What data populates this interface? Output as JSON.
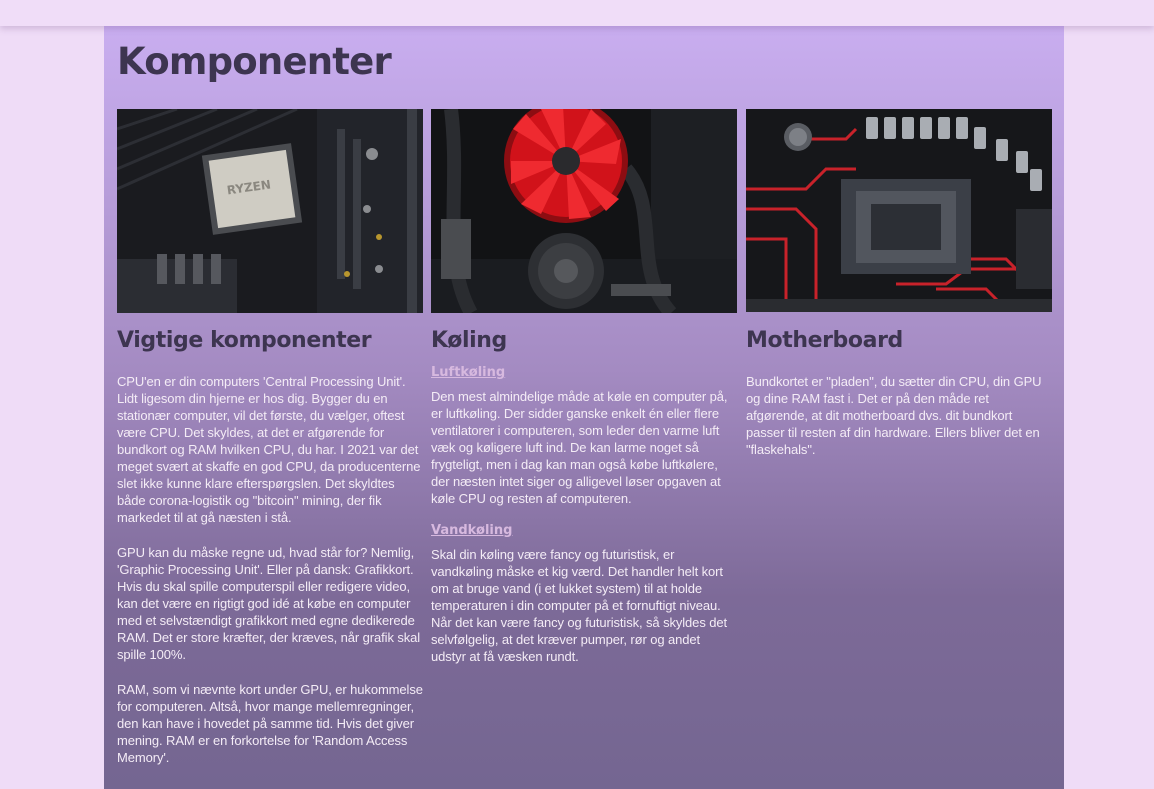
{
  "page": {
    "title": "Komponenter"
  },
  "columns": [
    {
      "heading": "Vigtige komponenter",
      "image": "cpu-on-motherboard-photo",
      "paragraphs": [
        "CPU'en er din computers 'Central Processing Unit'. Lidt ligesom din hjerne er hos dig. Bygger du en stationær computer, vil det første, du vælger, oftest være CPU. Det skyldes, at det er afgørende for bundkort og RAM hvilken CPU, du har. I 2021 var det meget svært at skaffe en god CPU, da producenterne slet ikke kunne klare efterspørgslen. Det skyldtes både corona-logistik og \"bitcoin\" mining, der fik markedet til at gå næsten i stå.",
        "GPU kan du måske regne ud, hvad står for? Nemlig, 'Graphic Processing Unit'. Eller på dansk: Grafikkort. Hvis du skal spille computerspil eller redigere video, kan det være en rigtigt god idé at købe en computer med et selvstændigt grafikkort med egne dedikerede RAM. Det er store kræfter, der kræves, når grafik skal spille 100%.",
        "RAM, som vi nævnte kort under GPU, er hukommelse for computeren. Altså, hvor mange mellemregninger, den kan have i hovedet på samme tid. Hvis det giver mening. RAM er en forkortelse for 'Random Access Memory'."
      ]
    },
    {
      "heading": "Køling",
      "image": "red-cpu-fan-photo",
      "sections": [
        {
          "link": "Luftkøling",
          "text": "Den mest almindelige måde at køle en computer på, er luftkøling. Der sidder ganske enkelt én eller flere ventilatorer i computeren, som leder den varme luft væk og køligere luft ind. De kan larme noget så frygteligt, men i dag kan man også købe luftkølere, der næsten intet siger og alligevel løser opgaven at køle CPU og resten af computeren."
        },
        {
          "link": "Vandkøling",
          "text": "Skal din køling være fancy og futuristisk, er vandkøling måske et kig værd. Det handler helt kort om at bruge vand (i et lukket system) til at holde temperaturen i din computer på et fornuftigt niveau. Når det kan være fancy og futuristisk, så skyldes det selvfølgelig, at det kræver pumper, rør og andet udstyr at få væsken rundt."
        }
      ]
    },
    {
      "heading": "Motherboard",
      "image": "motherboard-socket-photo",
      "paragraphs": [
        "Bundkortet er \"pladen\", du sætter din CPU, din GPU og dine RAM fast i. Det er på den måde ret afgørende, at dit motherboard dvs. dit bundkort passer til resten af din hardware. Ellers bliver det en \"flaskehals\"."
      ]
    }
  ],
  "colors": {
    "page_background": "#efdcf7",
    "panel_top": "#c9aef0",
    "panel_bottom": "#746691",
    "heading": "#3d3550",
    "link": "#d7b9df",
    "body_text": "#f4ecf6"
  }
}
